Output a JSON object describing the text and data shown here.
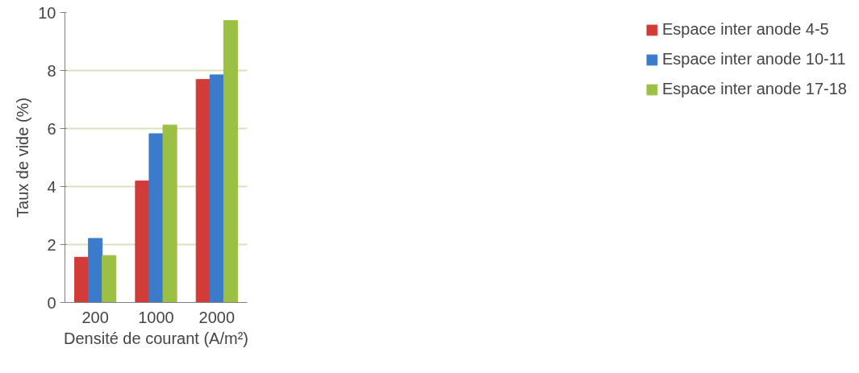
{
  "chart_data": {
    "type": "bar",
    "xlabel": "Densité de courant (A/m²)",
    "ylabel": "Taux de vide (%)",
    "categories": [
      "200",
      "1000",
      "2000"
    ],
    "series": [
      {
        "name": "Espace inter anode 4-5",
        "color": "#d13b38",
        "values": [
          1.56,
          4.19,
          7.69
        ]
      },
      {
        "name": "Espace inter anode 10-11",
        "color": "#3b7bcc",
        "values": [
          2.21,
          5.82,
          7.85
        ]
      },
      {
        "name": "Espace inter anode 17-18",
        "color": "#9cc043",
        "values": [
          1.62,
          6.12,
          9.72
        ]
      }
    ],
    "ylim": [
      0,
      10
    ],
    "yticks": [
      0,
      2,
      4,
      6,
      8,
      10
    ],
    "grid": "y",
    "legend": "right"
  }
}
